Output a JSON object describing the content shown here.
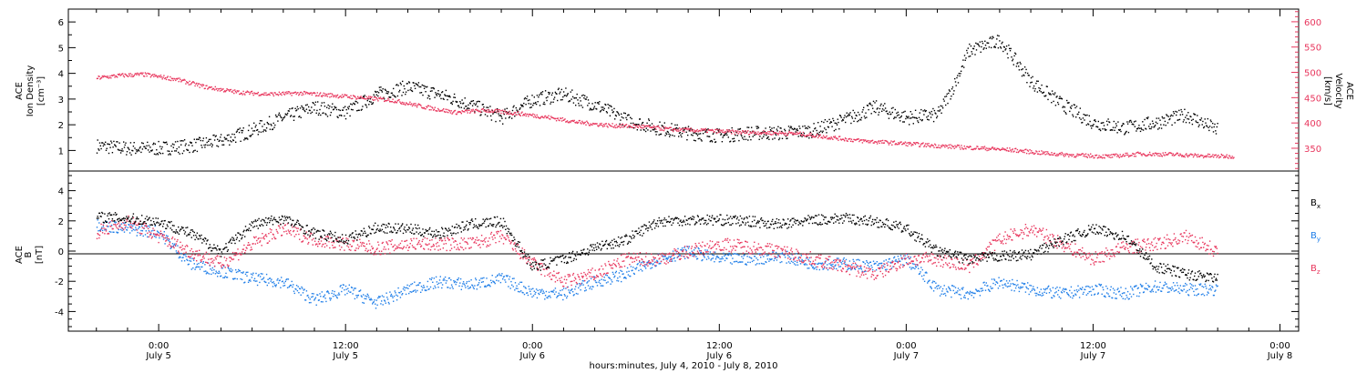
{
  "colors": {
    "density": "#000000",
    "velocity": "#e8365d",
    "bx": "#000000",
    "by": "#1f7ee8",
    "bz": "#e8365d",
    "axis": "#000000",
    "background": "#ffffff"
  },
  "x_axis": {
    "title": "hours:minutes, July  4, 2010 - July  8, 2010",
    "ticks": [
      {
        "time": "0:00",
        "date": "July 5"
      },
      {
        "time": "12:00",
        "date": "July 5"
      },
      {
        "time": "0:00",
        "date": "July 6"
      },
      {
        "time": "12:00",
        "date": "July 6"
      },
      {
        "time": "0:00",
        "date": "July 7"
      },
      {
        "time": "12:00",
        "date": "July 7"
      },
      {
        "time": "0:00",
        "date": "July 8"
      }
    ]
  },
  "top_panel": {
    "left_label_line1": "ACE",
    "left_label_line2": "Ion Density",
    "left_label_line3": "[cm⁻³]",
    "right_label_line1": "ACE",
    "right_label_line2": "Velocity",
    "right_label_line3": "[km/s]"
  },
  "bottom_panel": {
    "label_line1": "ACE",
    "label_line2": "B",
    "label_line3": "[nT]",
    "legend": [
      "Bx",
      "By",
      "Bz"
    ]
  },
  "chart_data": [
    {
      "type": "scatter",
      "title": "",
      "xlabel": "hours:minutes, July  4, 2010 - July  8, 2010",
      "x_unit": "hours after 2010-07-04 00:00",
      "xlim": [
        18.2,
        97.2
      ],
      "y_left": {
        "label": "ACE Ion Density [cm⁻³]",
        "ylim": [
          0.2,
          6.5
        ],
        "ticks": [
          1,
          2,
          3,
          4,
          5,
          6
        ]
      },
      "y_right": {
        "label": "ACE Velocity [km/s]",
        "ylim": [
          305,
          625
        ],
        "ticks": [
          350,
          400,
          450,
          500,
          550,
          600
        ]
      },
      "series": [
        {
          "name": "Ion Density",
          "axis": "left",
          "x": [
            20,
            22,
            24,
            26,
            28,
            30,
            32,
            34,
            36,
            38,
            40,
            42,
            44,
            46,
            48,
            50,
            52,
            54,
            56,
            58,
            60,
            62,
            64,
            66,
            68,
            70,
            72,
            74,
            75,
            76,
            78,
            80,
            82,
            84,
            86,
            88,
            90,
            92
          ],
          "y": [
            1.2,
            1.1,
            1.1,
            1.2,
            1.4,
            1.8,
            2.3,
            2.7,
            2.5,
            3.2,
            3.5,
            3.2,
            2.8,
            2.3,
            3.0,
            3.2,
            2.8,
            2.2,
            1.9,
            1.7,
            1.6,
            1.7,
            1.7,
            1.8,
            2.2,
            2.7,
            2.3,
            2.4,
            3.5,
            4.9,
            5.3,
            3.7,
            2.8,
            2.1,
            1.9,
            2.1,
            2.4,
            1.8
          ]
        },
        {
          "name": "Velocity",
          "axis": "right",
          "x": [
            20,
            21.5,
            23,
            25,
            27,
            29,
            31,
            33,
            35,
            37,
            39,
            41,
            43,
            45,
            47,
            49,
            51,
            53,
            55,
            57,
            59,
            61,
            63,
            65,
            67,
            69,
            71,
            73,
            75,
            77,
            79,
            81,
            83,
            85,
            87,
            89,
            91,
            93
          ],
          "y": [
            490,
            495,
            497,
            488,
            472,
            462,
            458,
            460,
            456,
            451,
            446,
            433,
            422,
            426,
            420,
            412,
            402,
            396,
            394,
            388,
            386,
            383,
            382,
            380,
            373,
            366,
            362,
            358,
            354,
            351,
            347,
            341,
            337,
            335,
            340,
            339,
            336,
            335
          ]
        }
      ]
    },
    {
      "type": "scatter",
      "title": "",
      "xlabel": "hours:minutes, July  4, 2010 - July  8, 2010",
      "x_unit": "hours after 2010-07-04 00:00",
      "xlim": [
        18.2,
        97.2
      ],
      "ylabel": "ACE B [nT]",
      "ylim": [
        -5.3,
        5.3
      ],
      "ticks": [
        -4,
        -2,
        0,
        2,
        4
      ],
      "zero_line": true,
      "series": [
        {
          "name": "Bx",
          "x": [
            20,
            22,
            24,
            26,
            28,
            30,
            32,
            34,
            36,
            38,
            40,
            42,
            44,
            46,
            48,
            50,
            52,
            54,
            56,
            58,
            60,
            62,
            64,
            66,
            68,
            70,
            72,
            74,
            76,
            78,
            80,
            82,
            84,
            86,
            88,
            90,
            92
          ],
          "y": [
            2.3,
            2.2,
            2.0,
            1.2,
            0.0,
            1.8,
            2.2,
            1.2,
            0.8,
            1.6,
            1.5,
            1.2,
            1.8,
            2.0,
            -1.0,
            -0.5,
            0.3,
            0.8,
            2.0,
            2.1,
            2.1,
            2.0,
            1.8,
            2.1,
            2.2,
            2.0,
            1.5,
            0.0,
            -0.5,
            -0.3,
            -0.2,
            0.8,
            1.5,
            1.0,
            -1.0,
            -1.5,
            -1.8
          ]
        },
        {
          "name": "By",
          "x": [
            20,
            22,
            24,
            26,
            28,
            30,
            32,
            34,
            36,
            38,
            40,
            42,
            44,
            46,
            48,
            50,
            52,
            54,
            56,
            58,
            60,
            62,
            64,
            66,
            68,
            70,
            72,
            74,
            76,
            78,
            80,
            82,
            84,
            86,
            88,
            90,
            92
          ],
          "y": [
            1.8,
            1.5,
            1.3,
            -0.8,
            -1.3,
            -1.8,
            -2.0,
            -3.2,
            -2.5,
            -3.4,
            -2.5,
            -2.0,
            -2.2,
            -1.8,
            -2.7,
            -2.8,
            -2.0,
            -1.5,
            -0.5,
            0.0,
            -0.5,
            -0.5,
            -0.3,
            -0.8,
            -0.8,
            -1.0,
            -0.5,
            -2.5,
            -2.8,
            -2.0,
            -2.5,
            -2.8,
            -2.5,
            -2.8,
            -2.3,
            -2.5,
            -2.5
          ]
        },
        {
          "name": "Bz",
          "x": [
            20,
            22,
            24,
            26,
            28,
            30,
            32,
            34,
            36,
            38,
            40,
            42,
            44,
            46,
            48,
            50,
            52,
            54,
            56,
            58,
            60,
            62,
            64,
            66,
            68,
            70,
            72,
            74,
            76,
            78,
            80,
            82,
            84,
            86,
            88,
            90,
            92
          ],
          "y": [
            1.3,
            2.0,
            1.0,
            0.0,
            -0.8,
            0.5,
            1.5,
            0.8,
            0.5,
            0.2,
            0.5,
            0.5,
            0.5,
            1.0,
            -0.8,
            -2.0,
            -1.5,
            -0.5,
            -0.5,
            0.0,
            0.5,
            0.3,
            0.0,
            -0.5,
            -1.0,
            -1.5,
            -0.5,
            -0.5,
            -1.0,
            0.8,
            1.5,
            0.5,
            -0.5,
            0.3,
            0.5,
            1.0,
            0.0
          ]
        }
      ]
    }
  ]
}
